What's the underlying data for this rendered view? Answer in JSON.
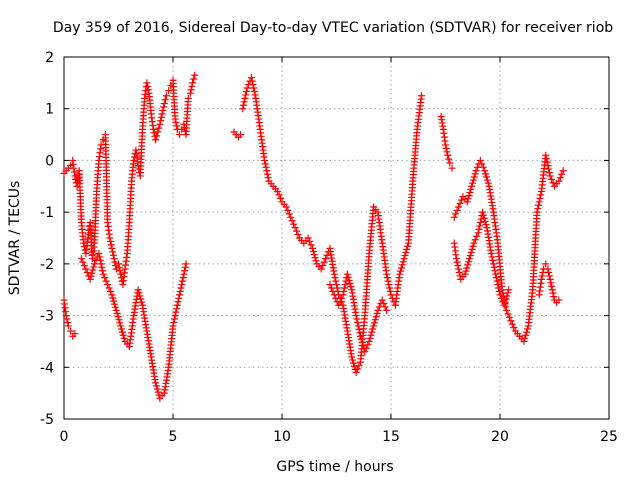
{
  "chart_data": {
    "type": "scatter",
    "title": "Day 359 of 2016, Sidereal Day-to-day VTEC variation (SDTVAR) for receiver riob",
    "xlabel": "GPS time / hours",
    "ylabel": "SDTVAR / TECUs",
    "xlim": [
      0,
      25
    ],
    "ylim": [
      -5,
      2
    ],
    "xticks": [
      0,
      5,
      10,
      15,
      20,
      25
    ],
    "yticks": [
      -5,
      -4,
      -3,
      -2,
      -1,
      0,
      1,
      2
    ],
    "xtick_labels": [
      "0",
      "5",
      "10",
      "15",
      "20",
      "25"
    ],
    "ytick_labels": [
      "-5",
      "-4",
      "-3",
      "-2",
      "-1",
      "0",
      "1",
      "2"
    ],
    "grid": true,
    "marker": "+",
    "color": "#ff0000",
    "series": [
      {
        "name": "riob",
        "segments": [
          {
            "x": [
              0.0,
              0.1,
              0.2,
              0.3,
              0.4,
              0.5,
              0.6,
              0.7,
              0.8,
              0.9,
              1.0,
              1.1,
              1.2,
              1.3,
              1.4,
              1.5,
              1.6,
              1.7,
              1.8,
              1.9,
              2.0,
              2.1,
              2.2,
              2.3,
              2.4,
              2.5,
              2.6,
              2.7,
              2.8,
              2.9,
              3.0,
              3.1,
              3.2,
              3.3,
              3.4,
              3.5,
              3.6,
              3.7,
              3.8,
              3.9,
              4.0,
              4.1,
              4.2,
              4.3,
              4.4,
              4.5,
              4.6,
              4.7,
              4.8,
              4.9,
              5.0,
              5.1,
              5.2,
              5.3,
              5.4,
              5.5,
              5.6,
              5.7,
              5.8,
              5.9,
              6.0
            ],
            "y": [
              -0.25,
              -0.2,
              -0.15,
              -0.1,
              0.0,
              -0.3,
              -0.5,
              -0.2,
              -1.2,
              -1.6,
              -1.8,
              -1.5,
              -1.2,
              -1.9,
              -1.6,
              -0.6,
              0.0,
              0.3,
              0.4,
              0.5,
              -1.2,
              -1.5,
              -1.7,
              -1.9,
              -2.1,
              -2.0,
              -2.2,
              -2.4,
              -2.1,
              -1.8,
              -1.2,
              -0.4,
              0.0,
              0.2,
              -0.1,
              -0.3,
              0.6,
              1.2,
              1.5,
              1.3,
              0.9,
              0.6,
              0.4,
              0.55,
              0.7,
              0.9,
              1.1,
              1.25,
              1.35,
              1.45,
              1.55,
              0.8,
              0.6,
              0.5,
              0.6,
              0.7,
              0.5,
              1.2,
              1.3,
              1.5,
              1.65
            ]
          },
          {
            "x": [
              0.0,
              0.1,
              0.2,
              0.3,
              0.4,
              0.5
            ],
            "y": [
              -2.7,
              -3.0,
              -3.2,
              -3.3,
              -3.4,
              -3.35
            ]
          },
          {
            "x": [
              0.8,
              1.0,
              1.2,
              1.4,
              1.6,
              1.8,
              2.0,
              2.2,
              2.4,
              2.6,
              2.8,
              3.0,
              3.2,
              3.4,
              3.6,
              3.8,
              4.0,
              4.2,
              4.4,
              4.6,
              4.8,
              5.0,
              5.2,
              5.4,
              5.6
            ],
            "y": [
              -1.9,
              -2.1,
              -2.3,
              -2.0,
              -1.8,
              -2.2,
              -2.4,
              -2.6,
              -2.9,
              -3.2,
              -3.5,
              -3.6,
              -3.0,
              -2.5,
              -2.8,
              -3.3,
              -3.8,
              -4.3,
              -4.6,
              -4.5,
              -4.0,
              -3.2,
              -2.8,
              -2.4,
              -2.0
            ]
          },
          {
            "x": [
              7.8,
              7.9,
              8.0,
              8.1
            ],
            "y": [
              0.55,
              0.5,
              0.45,
              0.5
            ]
          },
          {
            "x": [
              8.2,
              8.4,
              8.6,
              8.8,
              9.0,
              9.2,
              9.4,
              9.6,
              9.8,
              10.0,
              10.2,
              10.4,
              10.6,
              10.8,
              11.0,
              11.2,
              11.4,
              11.6,
              11.8,
              12.0,
              12.2,
              12.4,
              12.6,
              12.8,
              13.0,
              13.2,
              13.4,
              13.6,
              13.8,
              14.0,
              14.2,
              14.4,
              14.6,
              14.8,
              15.0,
              15.2,
              15.4,
              15.6,
              15.8,
              16.0,
              16.2,
              16.4
            ],
            "y": [
              1.0,
              1.4,
              1.6,
              1.2,
              0.6,
              0.0,
              -0.4,
              -0.5,
              -0.6,
              -0.8,
              -0.9,
              -1.1,
              -1.3,
              -1.5,
              -1.6,
              -1.5,
              -1.7,
              -2.0,
              -2.1,
              -1.9,
              -1.7,
              -2.2,
              -2.6,
              -2.8,
              -3.3,
              -3.8,
              -4.1,
              -3.9,
              -3.0,
              -1.8,
              -0.9,
              -1.0,
              -1.6,
              -2.2,
              -2.6,
              -2.8,
              -2.2,
              -1.9,
              -1.6,
              -0.4,
              0.6,
              1.25
            ]
          },
          {
            "x": [
              12.2,
              12.4,
              12.6,
              12.8,
              13.0,
              13.2,
              13.4,
              13.6,
              13.8,
              14.0,
              14.2,
              14.4,
              14.6,
              14.8
            ],
            "y": [
              -2.4,
              -2.6,
              -2.8,
              -2.6,
              -2.2,
              -2.5,
              -3.0,
              -3.4,
              -3.7,
              -3.5,
              -3.2,
              -2.9,
              -2.7,
              -2.9
            ]
          },
          {
            "x": [
              17.3,
              17.4,
              17.5,
              17.6,
              17.7,
              17.8
            ],
            "y": [
              0.85,
              0.6,
              0.3,
              0.1,
              -0.05,
              -0.15
            ]
          },
          {
            "x": [
              17.9,
              18.0,
              18.2,
              18.4,
              18.6,
              18.8,
              19.0,
              19.2,
              19.4,
              19.6,
              19.8,
              20.0,
              20.2,
              20.4
            ],
            "y": [
              -1.6,
              -1.9,
              -2.3,
              -2.2,
              -1.9,
              -1.6,
              -1.4,
              -1.0,
              -1.3,
              -1.8,
              -2.2,
              -2.6,
              -2.8,
              -2.5
            ]
          },
          {
            "x": [
              17.9,
              18.1,
              18.3,
              18.5,
              18.7,
              18.9,
              19.1,
              19.3,
              19.5,
              19.7,
              19.9,
              20.1,
              20.3,
              20.5,
              20.7,
              20.9,
              21.1,
              21.3,
              21.5,
              21.7,
              21.9,
              22.1,
              22.3,
              22.5,
              22.7,
              22.9
            ],
            "y": [
              -1.1,
              -0.9,
              -0.7,
              -0.8,
              -0.5,
              -0.2,
              0.0,
              -0.2,
              -0.5,
              -1.0,
              -1.6,
              -2.5,
              -2.9,
              -3.1,
              -3.3,
              -3.4,
              -3.5,
              -3.2,
              -2.5,
              -1.0,
              -0.6,
              0.1,
              -0.3,
              -0.5,
              -0.4,
              -0.2
            ]
          },
          {
            "x": [
              21.8,
              21.9,
              22.0,
              22.1,
              22.2,
              22.3,
              22.4,
              22.5,
              22.6,
              22.7
            ],
            "y": [
              -2.6,
              -2.3,
              -2.1,
              -2.0,
              -2.1,
              -2.3,
              -2.5,
              -2.7,
              -2.75,
              -2.7
            ]
          }
        ]
      }
    ]
  }
}
